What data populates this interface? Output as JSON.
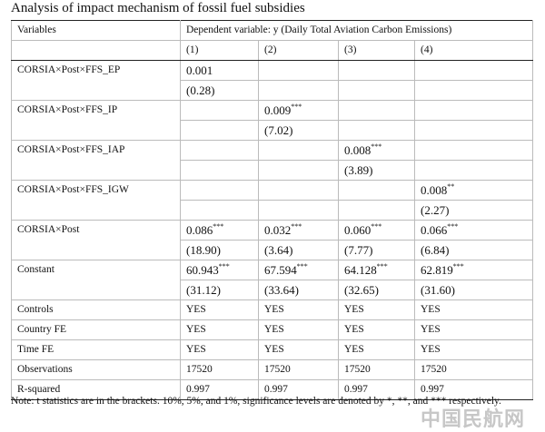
{
  "title": "Analysis of impact mechanism of fossil fuel subsidies",
  "header": {
    "variables_label": "Variables",
    "dependent_label": "Dependent variable: y (Daily Total Aviation Carbon Emissions)",
    "columns": [
      "(1)",
      "(2)",
      "(3)",
      "(4)"
    ]
  },
  "rows": [
    {
      "label": "CORSIA×Post×FFS_EP",
      "coef": [
        {
          "v": "0.001",
          "s": ""
        },
        {
          "v": "",
          "s": ""
        },
        {
          "v": "",
          "s": ""
        },
        {
          "v": "",
          "s": ""
        }
      ],
      "tstat": [
        "(0.28)",
        "",
        "",
        ""
      ]
    },
    {
      "label": "CORSIA×Post×FFS_IP",
      "coef": [
        {
          "v": "",
          "s": ""
        },
        {
          "v": "0.009",
          "s": "***"
        },
        {
          "v": "",
          "s": ""
        },
        {
          "v": "",
          "s": ""
        }
      ],
      "tstat": [
        "",
        "(7.02)",
        "",
        ""
      ]
    },
    {
      "label": "CORSIA×Post×FFS_IAP",
      "coef": [
        {
          "v": "",
          "s": ""
        },
        {
          "v": "",
          "s": ""
        },
        {
          "v": "0.008",
          "s": "***"
        },
        {
          "v": "",
          "s": ""
        }
      ],
      "tstat": [
        "",
        "",
        "(3.89)",
        ""
      ]
    },
    {
      "label": "CORSIA×Post×FFS_IGW",
      "coef": [
        {
          "v": "",
          "s": ""
        },
        {
          "v": "",
          "s": ""
        },
        {
          "v": "",
          "s": ""
        },
        {
          "v": "0.008",
          "s": "**"
        }
      ],
      "tstat": [
        "",
        "",
        "",
        "(2.27)"
      ]
    },
    {
      "label": "CORSIA×Post",
      "coef": [
        {
          "v": "0.086",
          "s": "***"
        },
        {
          "v": "0.032",
          "s": "***"
        },
        {
          "v": "0.060",
          "s": "***"
        },
        {
          "v": "0.066",
          "s": "***"
        }
      ],
      "tstat": [
        "(18.90)",
        "(3.64)",
        "(7.77)",
        "(6.84)"
      ]
    },
    {
      "label": "Constant",
      "coef": [
        {
          "v": "60.943",
          "s": "***"
        },
        {
          "v": "67.594",
          "s": "***"
        },
        {
          "v": "64.128",
          "s": "***"
        },
        {
          "v": "62.819",
          "s": "***"
        }
      ],
      "tstat": [
        "(31.12)",
        "(33.64)",
        "(32.65)",
        "(31.60)"
      ]
    }
  ],
  "stats": [
    {
      "label": "Controls",
      "values": [
        "YES",
        "YES",
        "YES",
        "YES"
      ]
    },
    {
      "label": "Country FE",
      "values": [
        "YES",
        "YES",
        "YES",
        "YES"
      ]
    },
    {
      "label": "Time FE",
      "values": [
        "YES",
        "YES",
        "YES",
        "YES"
      ]
    },
    {
      "label": "Observations",
      "values": [
        "17520",
        "17520",
        "17520",
        "17520"
      ]
    },
    {
      "label": "R-squared",
      "values": [
        "0.997",
        "0.997",
        "0.997",
        "0.997"
      ]
    }
  ],
  "note": "Note: t statistics are in the brackets. 10%, 5%, and 1%, significance levels are denoted by *, **, and *** respectively.",
  "watermark": "中国民航网"
}
